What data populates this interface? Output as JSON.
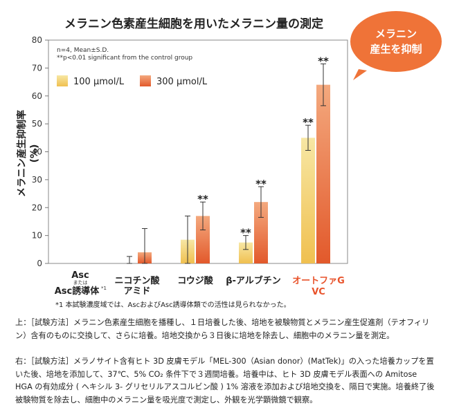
{
  "chart_data": {
    "type": "bar",
    "title": "メラニン色素産生細胞を用いたメラニン量の測定",
    "ylabel_line1": "メラニン産生抑制率",
    "ylabel_line2": "(%)",
    "ylim": [
      0,
      80
    ],
    "yticks": [
      "0",
      "10",
      "20",
      "30",
      "40",
      "50",
      "60",
      "70",
      "80"
    ],
    "notes": [
      "n=4, Mean±S.D.",
      "**p<0.01  significant from the control group"
    ],
    "categories": [
      {
        "lines": [
          "Asc",
          "Asc誘導体"
        ],
        "small": "または",
        "footnote_mark": "*1",
        "highlight": false
      },
      {
        "lines": [
          "ニコチン酸",
          "アミド"
        ],
        "highlight": false
      },
      {
        "lines": [
          "コウジ酸"
        ],
        "highlight": false
      },
      {
        "lines": [
          "β-アルブチン"
        ],
        "highlight": false
      },
      {
        "lines": [
          "オートファG",
          "VC"
        ],
        "highlight": true
      }
    ],
    "series": [
      {
        "name": "100 μmol/L",
        "color_top": "#f7e7a4",
        "color_bottom": "#f0c050",
        "values": [
          0,
          0,
          8.5,
          7.5,
          45
        ],
        "errors": [
          0,
          2.5,
          8.5,
          2.5,
          4.5
        ],
        "sig": [
          "",
          "",
          "",
          "**",
          "**"
        ]
      },
      {
        "name": "300 μmol/L",
        "color_top": "#f4a97e",
        "color_bottom": "#e2592b",
        "values": [
          0,
          4,
          17,
          22,
          64
        ],
        "errors": [
          0,
          8.5,
          5,
          5.5,
          7.5
        ],
        "sig": [
          "",
          "",
          "**",
          "**",
          "**"
        ]
      }
    ]
  },
  "badge": {
    "line1": "メラニン",
    "line2": "産生を抑制"
  },
  "footnote": "*1  本試験濃度域では、AscおよびAsc誘導体類での活性は見られなかった。",
  "description_top": "上：［試験方法］メラニン色素産生細胞を播種し、１日培養した後、培地を被験物質とメラニン産生促進剤（テオフィリン）含有のものに交換して、さらに培養。培地交換から３日後に培地を除去し、細胞中のメラニン量を測定。",
  "description_bottom": "右：［試験方法］メラノサイト含有ヒト 3D 皮膚モデル「MEL-300（Asian donor）(MatTek)」の入った培養カップを置いた後、培地を添加して、37℃、5% CO₂ 条件下で３週間培養。培養中は、ヒト 3D 皮膚モデル表面への Amitose HGA の有効成分 ( ヘキシル 3- グリセリルアスコルビン酸 ) 1% 溶液を添加および培地交換を、隔日で実施。培養終了後被験物質を除去し、細胞中のメラニン量を吸光度で測定し、外観を光学顕微鏡で観察。"
}
